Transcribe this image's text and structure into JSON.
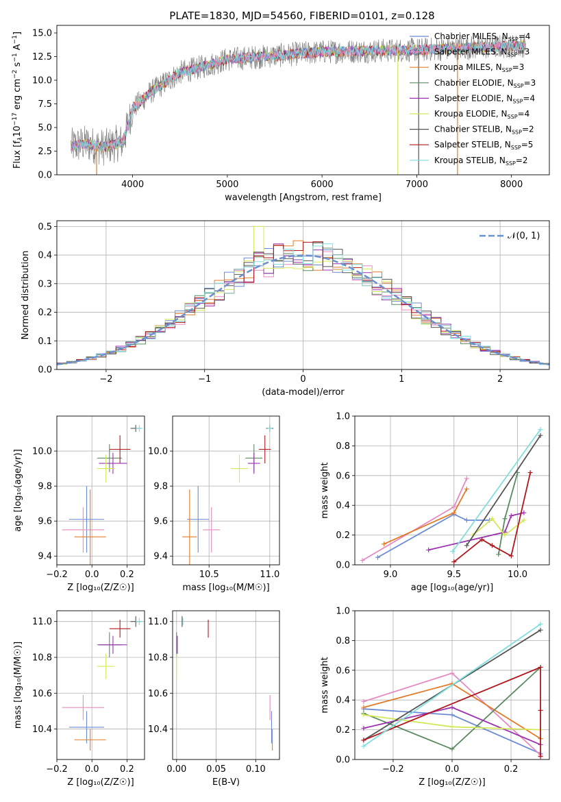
{
  "colors": {
    "chabrier_miles": "#6b8bd6",
    "salpeter_miles": "#e58ac0",
    "kroupa_miles": "#e07b28",
    "chabrier_elodie": "#5a8a60",
    "salpeter_elodie": "#9b30b0",
    "kroupa_elodie": "#d4e85a",
    "chabrier_stelib": "#555555",
    "salpeter_stelib": "#b0161c",
    "kroupa_stelib": "#80dede",
    "gauss": "#6a8fd0",
    "grid": "#b0b0b0"
  },
  "chart_data": [
    {
      "id": "spectrum",
      "type": "line",
      "title": "PLATE=1830, MJD=54560, FIBERID=0101, z=0.128",
      "xlabel": "wavelength [Angstrom, rest frame]",
      "ylabel_main": "Flux [f",
      "ylabel_sub": "λ",
      "ylabel_rest": "10",
      "ylabel_exp": "−17",
      "ylabel_units": " erg cm",
      "ylabel_units_exp": "−2",
      "ylabel_units2": " s",
      "ylabel_units2_exp": "−1",
      "ylabel_units3": " A",
      "ylabel_units3_exp": "−1",
      "ylabel_end": "]",
      "xlim": [
        3200,
        8400
      ],
      "ylim": [
        0,
        15.8
      ],
      "xticks": [
        4000,
        5000,
        6000,
        7000,
        8000
      ],
      "yticks": [
        0.0,
        2.5,
        5.0,
        7.5,
        10.0,
        12.5,
        15.0
      ],
      "ytick_labels": [
        "0.0",
        "2.5",
        "5.0",
        "7.5",
        "10.0",
        "12.5",
        "15.0"
      ],
      "continuum": {
        "x": [
          3350,
          3500,
          3700,
          3900,
          4000,
          4200,
          4500,
          4800,
          5000,
          5500,
          6000,
          6500,
          7000,
          7500,
          8000,
          8150
        ],
        "y": [
          3.0,
          3.3,
          2.9,
          3.5,
          7.0,
          8.8,
          10.8,
          11.6,
          12.2,
          12.6,
          13.0,
          13.1,
          13.2,
          13.4,
          13.6,
          13.7
        ]
      },
      "legend": [
        {
          "label": "Chabrier MILES, N",
          "sub": "SSP",
          "value": "=4",
          "color": "chabrier_miles"
        },
        {
          "label": "Salpeter MILES, N",
          "sub": "SSP",
          "value": "=3",
          "color": "salpeter_miles"
        },
        {
          "label": "Kroupa MILES, N",
          "sub": "SSP",
          "value": "=3",
          "color": "kroupa_miles"
        },
        {
          "label": "Chabrier ELODIE, N",
          "sub": "SSP",
          "value": "=3",
          "color": "chabrier_elodie"
        },
        {
          "label": "Salpeter ELODIE, N",
          "sub": "SSP",
          "value": "=4",
          "color": "salpeter_elodie"
        },
        {
          "label": "Kroupa ELODIE, N",
          "sub": "SSP",
          "value": "=4",
          "color": "kroupa_elodie"
        },
        {
          "label": "Chabrier STELIB, N",
          "sub": "SSP",
          "value": "=2",
          "color": "chabrier_stelib"
        },
        {
          "label": "Salpeter STELIB, N",
          "sub": "SSP",
          "value": "=5",
          "color": "salpeter_stelib"
        },
        {
          "label": "Kroupa STELIB, N",
          "sub": "SSP",
          "value": "=2",
          "color": "kroupa_stelib"
        }
      ]
    },
    {
      "id": "residuals",
      "type": "line",
      "xlabel": "(data-model)/error",
      "ylabel": "Normed distribution",
      "xlim": [
        -2.5,
        2.5
      ],
      "ylim": [
        0,
        0.52
      ],
      "xticks": [
        -2,
        -1,
        0,
        1,
        2
      ],
      "xtick_labels": [
        "−2",
        "−1",
        "0",
        "1",
        "2"
      ],
      "yticks": [
        0.0,
        0.1,
        0.2,
        0.3,
        0.4,
        0.5
      ],
      "ytick_labels": [
        "0.0",
        "0.1",
        "0.2",
        "0.3",
        "0.4",
        "0.5"
      ],
      "gauss_legend": "𝒩(0, 1)",
      "bin_width": 0.1,
      "bin_start": -2.5
    },
    {
      "id": "age_vs_Z",
      "type": "scatter",
      "xlabel": "Z [log₁₀(Z/Z☉)]",
      "ylabel": "age  [log₁₀(age/yr)]",
      "xlim": [
        -0.2,
        0.3
      ],
      "ylim": [
        9.35,
        10.2
      ],
      "xticks": [
        -0.2,
        0.0,
        0.2
      ],
      "xtick_labels": [
        "−0.2",
        "0.0",
        "0.2"
      ],
      "yticks": [
        9.4,
        9.6,
        9.8,
        10.0
      ],
      "ytick_labels": [
        "9.4",
        "9.6",
        "9.8",
        "10.0"
      ]
    },
    {
      "id": "age_vs_mass",
      "type": "scatter",
      "xlabel": "mass [log₁₀(M/M☉)]",
      "xlim": [
        10.2,
        11.08
      ],
      "ylim": [
        9.35,
        10.2
      ],
      "xticks": [
        10.5,
        11.0
      ],
      "xtick_labels": [
        "10.5",
        "11.0"
      ],
      "yticks": [
        9.4,
        9.6,
        9.8,
        10.0
      ],
      "ytick_labels": [
        "9.4",
        "9.6",
        "9.8",
        "10.0"
      ]
    },
    {
      "id": "weight_vs_age",
      "type": "line",
      "xlabel": "age  [log₁₀(age/yr)]",
      "ylabel": "mass weight",
      "xlim": [
        8.72,
        10.25
      ],
      "ylim": [
        0,
        1
      ],
      "xticks": [
        9.0,
        9.5,
        10.0
      ],
      "xtick_labels": [
        "9.0",
        "9.5",
        "10.0"
      ],
      "yticks": [
        0.0,
        0.2,
        0.4,
        0.6,
        0.8,
        1.0
      ],
      "ytick_labels": [
        "0.0",
        "0.2",
        "0.4",
        "0.6",
        "0.8",
        "1.0"
      ]
    },
    {
      "id": "mass_vs_Z",
      "type": "scatter",
      "xlabel": "Z [log₁₀(Z/Z☉)]",
      "ylabel": "mass [log₁₀(M/M☉)]",
      "xlim": [
        -0.2,
        0.3
      ],
      "ylim": [
        10.23,
        11.06
      ],
      "xticks": [
        -0.2,
        0.0,
        0.2
      ],
      "xtick_labels": [
        "−0.2",
        "0.0",
        "0.2"
      ],
      "yticks": [
        10.4,
        10.6,
        10.8,
        11.0
      ],
      "ytick_labels": [
        "10.4",
        "10.6",
        "10.8",
        "11.0"
      ]
    },
    {
      "id": "mass_vs_ebv",
      "type": "scatter",
      "xlabel": "E(B-V)",
      "xlim": [
        -0.005,
        0.13
      ],
      "ylim": [
        10.23,
        11.06
      ],
      "xticks": [
        0.0,
        0.05,
        0.1
      ],
      "xtick_labels": [
        "0.00",
        "0.05",
        "0.10"
      ],
      "yticks": [
        10.4,
        10.6,
        10.8,
        11.0
      ],
      "ytick_labels": [
        "10.4",
        "10.6",
        "10.8",
        "11.0"
      ]
    },
    {
      "id": "weight_vs_Z",
      "type": "line",
      "xlabel": "Z [log₁₀(Z/Z☉)]",
      "ylabel": "mass weight",
      "xlim": [
        -0.33,
        0.33
      ],
      "ylim": [
        0,
        1
      ],
      "xticks": [
        -0.2,
        0.0,
        0.2
      ],
      "xtick_labels": [
        "−0.2",
        "0.0",
        "0.2"
      ],
      "yticks": [
        0.0,
        0.2,
        0.4,
        0.6,
        0.8,
        1.0
      ],
      "ytick_labels": [
        "0.0",
        "0.2",
        "0.4",
        "0.6",
        "0.8",
        "1.0"
      ]
    }
  ],
  "models": [
    {
      "color": "chabrier_miles",
      "Z": [
        -0.03,
        0.1
      ],
      "age": [
        9.61,
        0.19
      ],
      "mass": [
        10.41,
        0.09
      ],
      "ebv": 0.12,
      "w_age": [
        [
          8.9,
          0.05
        ],
        [
          9.5,
          0.34
        ],
        [
          9.6,
          0.3
        ],
        [
          9.78,
          0.3
        ]
      ],
      "w_Z": [
        [
          -0.3,
          0.34
        ],
        [
          0.0,
          0.3
        ],
        [
          0.3,
          0.04
        ]
      ]
    },
    {
      "color": "salpeter_miles",
      "Z": [
        -0.05,
        0.12
      ],
      "age": [
        9.55,
        0.13
      ],
      "mass": [
        10.52,
        0.07
      ],
      "ebv": 0.118,
      "w_age": [
        [
          8.78,
          0.03
        ],
        [
          9.5,
          0.39
        ],
        [
          9.6,
          0.58
        ]
      ],
      "w_Z": [
        [
          -0.3,
          0.39
        ],
        [
          0.0,
          0.58
        ],
        [
          0.3,
          0.03
        ]
      ]
    },
    {
      "color": "kroupa_miles",
      "Z": [
        -0.01,
        0.09
      ],
      "age": [
        9.51,
        0.27
      ],
      "mass": [
        10.34,
        0.06
      ],
      "ebv": 0.121,
      "w_age": [
        [
          8.95,
          0.14
        ],
        [
          9.5,
          0.35
        ],
        [
          9.6,
          0.51
        ]
      ],
      "w_Z": [
        [
          -0.3,
          0.35
        ],
        [
          0.0,
          0.51
        ],
        [
          0.3,
          0.14
        ]
      ]
    },
    {
      "color": "chabrier_elodie",
      "Z": [
        0.1,
        0.07
      ],
      "age": [
        9.96,
        0.08
      ],
      "mass": [
        10.87,
        0.07
      ],
      "ebv": 0.0,
      "w_age": [
        [
          9.85,
          0.07
        ],
        [
          9.9,
          0.31
        ],
        [
          10.0,
          0.62
        ]
      ],
      "w_Z": [
        [
          -0.3,
          0.31
        ],
        [
          0.0,
          0.07
        ],
        [
          0.3,
          0.62
        ]
      ]
    },
    {
      "color": "salpeter_elodie",
      "Z": [
        0.12,
        0.08
      ],
      "age": [
        9.93,
        0.06
      ],
      "mass": [
        10.87,
        0.05
      ],
      "ebv": 0.001,
      "w_age": [
        [
          9.3,
          0.1
        ],
        [
          9.9,
          0.22
        ],
        [
          9.95,
          0.33
        ],
        [
          10.05,
          0.35
        ]
      ],
      "w_Z": [
        [
          -0.3,
          0.21
        ],
        [
          0.0,
          0.35
        ],
        [
          0.3,
          0.1
        ]
      ]
    },
    {
      "color": "kroupa_elodie",
      "Z": [
        0.08,
        0.05
      ],
      "age": [
        9.9,
        0.08
      ],
      "mass": [
        10.75,
        0.07
      ],
      "ebv": 0.0,
      "w_age": [
        [
          9.65,
          0.2
        ],
        [
          9.8,
          0.31
        ],
        [
          9.9,
          0.2
        ],
        [
          10.05,
          0.3
        ]
      ],
      "w_Z": [
        [
          -0.3,
          0.3
        ],
        [
          0.0,
          0.22
        ],
        [
          0.3,
          0.2
        ]
      ]
    },
    {
      "color": "chabrier_stelib",
      "Z": [
        0.25,
        0.03
      ],
      "age": [
        10.13,
        0.02
      ],
      "mass": [
        11.0,
        0.03
      ],
      "ebv": 0.007,
      "w_age": [
        [
          9.6,
          0.13
        ],
        [
          10.18,
          0.87
        ]
      ],
      "w_Z": [
        [
          -0.3,
          0.13
        ],
        [
          0.3,
          0.87
        ]
      ]
    },
    {
      "color": "salpeter_stelib",
      "Z": [
        0.16,
        0.06
      ],
      "age": [
        10.01,
        0.08
      ],
      "mass": [
        10.96,
        0.05
      ],
      "ebv": 0.04,
      "w_age": [
        [
          9.5,
          0.02
        ],
        [
          9.72,
          0.17
        ],
        [
          9.8,
          0.13
        ],
        [
          9.95,
          0.06
        ],
        [
          10.1,
          0.62
        ]
      ],
      "w_Z": [
        [
          -0.3,
          0.13
        ],
        [
          0.3,
          0.62
        ],
        [
          0.3,
          0.02
        ],
        [
          0.3,
          0.33
        ]
      ]
    },
    {
      "color": "kroupa_stelib",
      "Z": [
        0.27,
        0.02
      ],
      "age": [
        10.13,
        0.02
      ],
      "mass": [
        11.0,
        0.02
      ],
      "ebv": 0.008,
      "w_age": [
        [
          9.49,
          0.09
        ],
        [
          10.18,
          0.91
        ]
      ],
      "w_Z": [
        [
          -0.3,
          0.09
        ],
        [
          0.3,
          0.91
        ]
      ]
    }
  ]
}
